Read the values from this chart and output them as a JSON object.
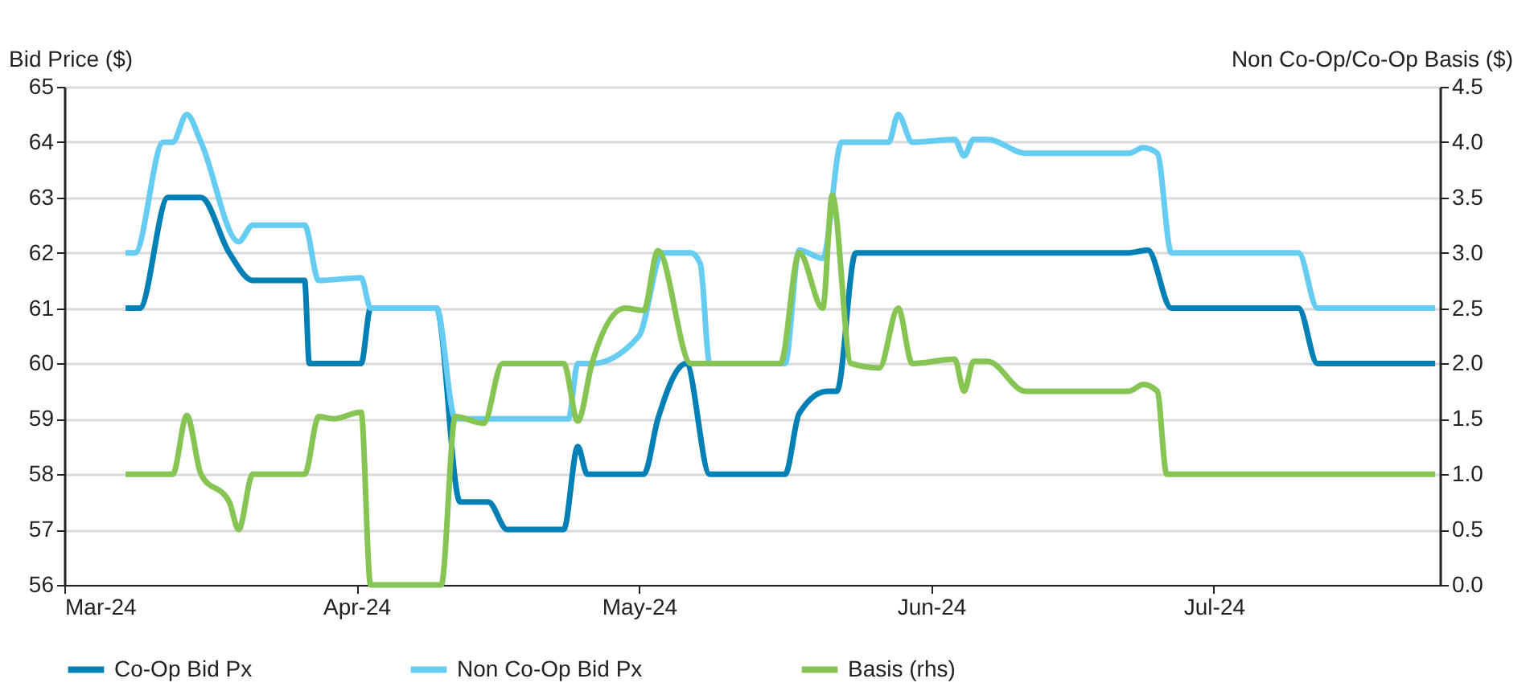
{
  "chart_data": {
    "type": "line",
    "ylabel": "Bid Price ($)",
    "y2label": "Non Co-Op/Co-Op Basis ($)",
    "xlim": [
      "2024-03-01",
      "2024-07-25"
    ],
    "xticks": [
      {
        "value": "2024-03-01",
        "label": "Mar-24"
      },
      {
        "value": "2024-04-01",
        "label": "Apr-24"
      },
      {
        "value": "2024-05-01",
        "label": "May-24"
      },
      {
        "value": "2024-06-01",
        "label": "Jun-24"
      },
      {
        "value": "2024-07-01",
        "label": "Jul-24"
      }
    ],
    "ylim": [
      56,
      65
    ],
    "yticks": [
      56,
      57,
      58,
      59,
      60,
      61,
      62,
      63,
      64,
      65
    ],
    "y2lim": [
      0,
      4.5
    ],
    "y2ticks": [
      {
        "value": 0,
        "label": "0.0"
      },
      {
        "value": 0.5,
        "label": "0.5"
      },
      {
        "value": 1,
        "label": "1.0"
      },
      {
        "value": 1.5,
        "label": "1.5"
      },
      {
        "value": 2,
        "label": "2.0"
      },
      {
        "value": 2.5,
        "label": "2.5"
      },
      {
        "value": 3,
        "label": "3.0"
      },
      {
        "value": 3.5,
        "label": "3.5"
      },
      {
        "value": 4,
        "label": "4.0"
      },
      {
        "value": 4.5,
        "label": "4.5"
      }
    ],
    "grid": "y",
    "legend": "bottom",
    "line_style": "solid",
    "marker": "none",
    "series": [
      {
        "name": "Co-Op Bid Px",
        "color": "#0080b4",
        "x": [
          "2024-03-07T12:00",
          "2024-03-09",
          "2024-03-12",
          "2024-03-15T12:00",
          "2024-03-18T12:00",
          "2024-03-21",
          "2024-03-26T12:00",
          "2024-03-27",
          "2024-04-01T12:00",
          "2024-04-02T12:00",
          "2024-04-09T12:00",
          "2024-04-12",
          "2024-04-15",
          "2024-04-17",
          "2024-04-23",
          "2024-04-24T12:00",
          "2024-04-25T12:00",
          "2024-05-01T12:00",
          "2024-05-03",
          "2024-05-06",
          "2024-05-08T12:00",
          "2024-05-16T12:00",
          "2024-05-18",
          "2024-05-21",
          "2024-05-22",
          "2024-05-24",
          "2024-06-22",
          "2024-06-24",
          "2024-06-26T12:00",
          "2024-07-10",
          "2024-07-12",
          "2024-07-24T12:00"
        ],
        "values": [
          61,
          61,
          63,
          63,
          62,
          61.5,
          61.5,
          60,
          60,
          61,
          61,
          57.5,
          57.5,
          57,
          57,
          58.5,
          58,
          58,
          59,
          60,
          58,
          58,
          59.1,
          59.5,
          59.5,
          62,
          62,
          62.05,
          61,
          61,
          60,
          60
        ]
      },
      {
        "name": "Non Co-Op Bid Px",
        "color": "#66ccf2",
        "x": [
          "2024-03-07T12:00",
          "2024-03-08T12:00",
          "2024-03-11T12:00",
          "2024-03-12T12:00",
          "2024-03-14",
          "2024-03-15T12:00",
          "2024-03-19T12:00",
          "2024-03-21",
          "2024-03-26T12:00",
          "2024-03-28",
          "2024-04-01T12:00",
          "2024-04-02T12:00",
          "2024-04-09T12:00",
          "2024-04-11T12:00",
          "2024-04-23T12:00",
          "2024-04-24T12:00",
          "2024-04-26",
          "2024-05-01",
          "2024-05-03T12:00",
          "2024-05-06T12:00",
          "2024-05-07T12:00",
          "2024-05-08T12:00",
          "2024-05-16T12:00",
          "2024-05-18",
          "2024-05-20T12:00",
          "2024-05-22T12:00",
          "2024-05-27T12:00",
          "2024-05-28T12:00",
          "2024-05-30",
          "2024-06-03T12:00",
          "2024-06-04T12:00",
          "2024-06-05T12:00",
          "2024-06-07",
          "2024-06-11",
          "2024-06-22",
          "2024-06-23T12:00",
          "2024-06-25",
          "2024-06-26T12:00",
          "2024-07-10",
          "2024-07-12",
          "2024-07-24T12:00"
        ],
        "values": [
          62,
          62,
          64,
          64,
          64.5,
          64,
          62.2,
          62.5,
          62.5,
          61.5,
          61.55,
          61,
          61,
          59,
          59,
          60,
          60,
          60.5,
          62,
          62,
          61.8,
          60,
          60,
          62.05,
          61.9,
          64,
          64,
          64.5,
          64,
          64.05,
          63.75,
          64.05,
          64.05,
          63.8,
          63.8,
          63.9,
          63.8,
          62,
          62,
          61,
          61
        ]
      },
      {
        "name": "Basis (rhs)",
        "color": "#86c553",
        "axis": "y2",
        "x": [
          "2024-03-07T12:00",
          "2024-03-12T12:00",
          "2024-03-14",
          "2024-03-15T12:00",
          "2024-03-18T12:00",
          "2024-03-19T12:00",
          "2024-03-21",
          "2024-03-26T12:00",
          "2024-03-28",
          "2024-03-29T12:00",
          "2024-04-01T12:00",
          "2024-04-02T12:00",
          "2024-04-10",
          "2024-04-11T12:00",
          "2024-04-14T12:00",
          "2024-04-16T12:00",
          "2024-04-23",
          "2024-04-24T12:00",
          "2024-04-26",
          "2024-04-29T12:00",
          "2024-05-01T12:00",
          "2024-05-03",
          "2024-05-06T12:00",
          "2024-05-16",
          "2024-05-18",
          "2024-05-20T12:00",
          "2024-05-21T12:00",
          "2024-05-23T12:00",
          "2024-05-26T12:00",
          "2024-05-28T12:00",
          "2024-05-30",
          "2024-06-03T12:00",
          "2024-06-04T12:00",
          "2024-06-05T12:00",
          "2024-06-07",
          "2024-06-11",
          "2024-06-22",
          "2024-06-23T12:00",
          "2024-06-25",
          "2024-06-26",
          "2024-07-24T12:00"
        ],
        "values": [
          1,
          1,
          1.53,
          1,
          0.75,
          0.5,
          1,
          1,
          1.52,
          1.5,
          1.56,
          0,
          0,
          1.52,
          1.46,
          2,
          2,
          1.48,
          2,
          2.5,
          2.48,
          3.02,
          2,
          2,
          3,
          2.5,
          3.52,
          2,
          1.96,
          2.5,
          2,
          2.04,
          1.75,
          2.02,
          2.02,
          1.75,
          1.75,
          1.81,
          1.75,
          1,
          1
        ]
      }
    ]
  }
}
